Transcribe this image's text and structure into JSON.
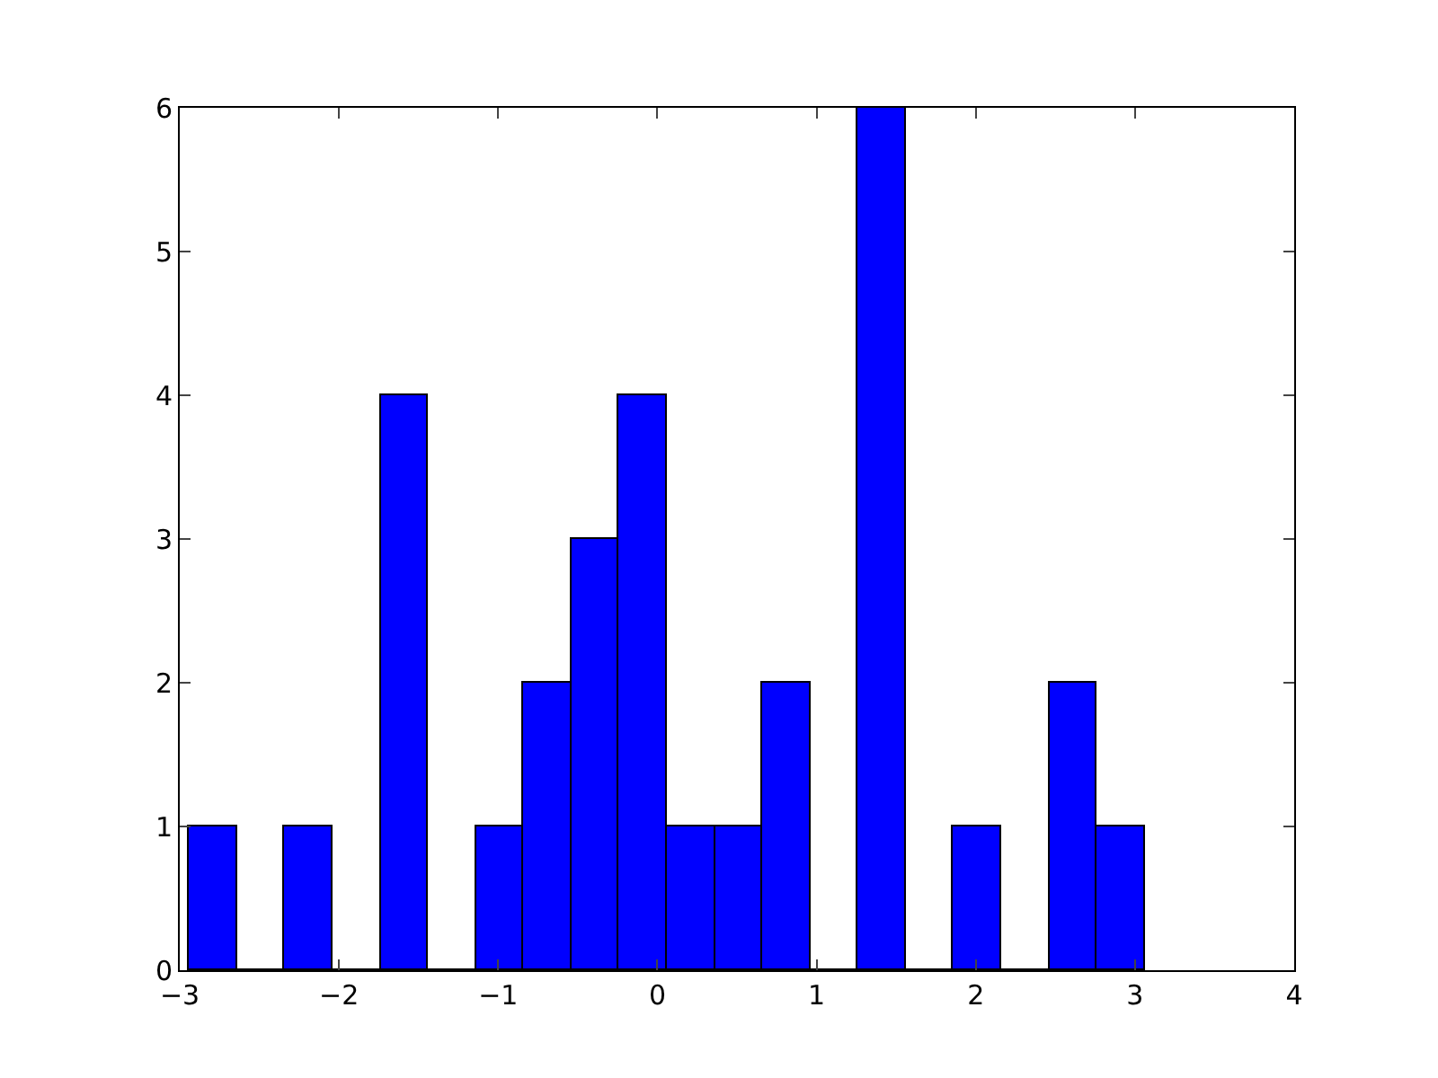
{
  "chart_data": {
    "type": "histogram",
    "bins": [
      -2.94,
      -2.64,
      -2.34,
      -2.04,
      -1.74,
      -1.44,
      -1.14,
      -0.84,
      -0.54,
      -0.24,
      0.06,
      0.36,
      0.66,
      0.96,
      1.26,
      1.56,
      1.86,
      2.16,
      2.46,
      2.76,
      3.06
    ],
    "values": [
      1,
      0,
      1,
      0,
      4,
      0,
      1,
      2,
      3,
      4,
      1,
      1,
      2,
      0,
      6,
      0,
      1,
      0,
      2,
      1
    ],
    "color": "#0000ff",
    "xlim": [
      -3,
      4
    ],
    "xticks": [
      {
        "value": -3,
        "label": "−3"
      },
      {
        "value": -2,
        "label": "−2"
      },
      {
        "value": -1,
        "label": "−1"
      },
      0,
      1,
      2,
      3,
      4
    ],
    "ylim": [
      0,
      6
    ],
    "yticks": [
      0,
      1,
      2,
      3,
      4,
      5,
      6
    ]
  }
}
